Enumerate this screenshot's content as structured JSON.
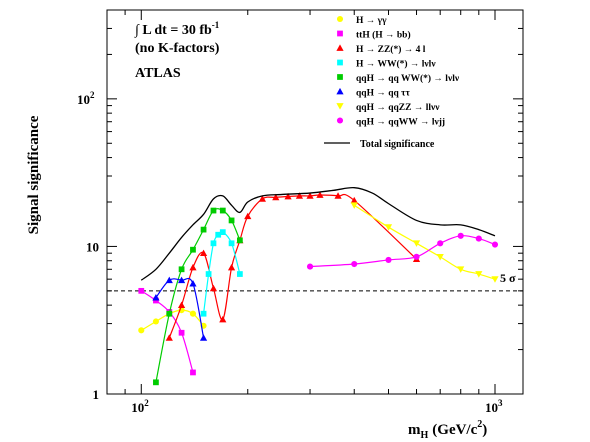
{
  "chart_data": {
    "type": "line",
    "xlabel_main": "m",
    "xlabel_sub": "H",
    "xlabel_unit": "(GeV/c",
    "xlabel_sup": "2",
    "xlabel_close": ")",
    "ylabel": "Signal significance",
    "x_scale": "log",
    "y_scale": "log",
    "xlim": [
      80,
      1200
    ],
    "ylim": [
      1,
      400
    ],
    "x_ticks": [
      {
        "value": 100,
        "base": "10",
        "exp": "2"
      },
      {
        "value": 1000,
        "base": "10",
        "exp": "3"
      }
    ],
    "y_ticks": [
      {
        "value": 1,
        "label": "1"
      },
      {
        "value": 10,
        "label": "10"
      },
      {
        "value": 100,
        "base": "10",
        "exp": "2"
      }
    ],
    "annotations": {
      "lumi_prefix": "∫ L dt = 30 fb",
      "lumi_sup": "-1",
      "kfactor": "(no K-factors)",
      "experiment": "ATLAS",
      "five_sigma": "5 σ"
    },
    "reference_line": {
      "y": 5,
      "style": "dashed"
    },
    "total_label": "Total significance",
    "series": [
      {
        "name": "H → γγ",
        "color": "#ffff00",
        "marker": "circle",
        "x": [
          100,
          110,
          120,
          130,
          140,
          150
        ],
        "y": [
          2.7,
          3.1,
          3.5,
          3.7,
          3.5,
          2.9
        ]
      },
      {
        "name": "ttH (H → bb)",
        "color": "#ff00ff",
        "marker": "square",
        "x": [
          100,
          110,
          120,
          130,
          140
        ],
        "y": [
          5.0,
          4.3,
          3.6,
          2.6,
          1.4
        ]
      },
      {
        "name": "H → ZZ(*) → 4 l",
        "color": "#ff0000",
        "marker": "triangle-up",
        "x": [
          120,
          130,
          140,
          150,
          160,
          170,
          180,
          190,
          200,
          220,
          240,
          260,
          280,
          300,
          320,
          360,
          400,
          600
        ],
        "y": [
          2.4,
          4.0,
          7.2,
          9.0,
          5.2,
          3.2,
          7.2,
          11.0,
          16.0,
          21.0,
          21.5,
          21.8,
          22.0,
          22.0,
          22.3,
          22.0,
          20.5,
          8.2
        ]
      },
      {
        "name": "H → WW(*) → lνlν",
        "color": "#00ffff",
        "marker": "square",
        "x": [
          150,
          155,
          160,
          165,
          170,
          180,
          190
        ],
        "y": [
          3.5,
          6.5,
          10.5,
          12.0,
          12.5,
          10.5,
          6.5
        ]
      },
      {
        "name": "qqH → qq WW(*) → lνlν",
        "color": "#00cc00",
        "marker": "square",
        "x": [
          110,
          120,
          130,
          140,
          150,
          160,
          170,
          180,
          190
        ],
        "y": [
          1.2,
          3.5,
          7.0,
          9.5,
          13.0,
          17.5,
          17.5,
          15.0,
          11.0
        ]
      },
      {
        "name": "qqH → qq ττ",
        "color": "#0000ff",
        "marker": "triangle-up",
        "x": [
          110,
          120,
          130,
          140,
          150
        ],
        "y": [
          4.5,
          5.9,
          5.9,
          5.6,
          2.4
        ]
      },
      {
        "name": "qqH → qqZZ → llνν",
        "color": "#ffff00",
        "marker": "triangle-down",
        "x": [
          400,
          500,
          600,
          700,
          800,
          900,
          1000
        ],
        "y": [
          19.0,
          13.5,
          10.5,
          8.5,
          7.0,
          6.5,
          6.0
        ]
      },
      {
        "name": "qqH → qqWW → lνjj",
        "color": "#ff00ff",
        "marker": "circle",
        "x": [
          300,
          400,
          500,
          600,
          700,
          800,
          900,
          1000
        ],
        "y": [
          7.3,
          7.6,
          8.1,
          8.5,
          10.5,
          11.8,
          11.3,
          10.3
        ]
      },
      {
        "name": "Total significance",
        "color": "#000000",
        "marker": "none",
        "x": [
          100,
          110,
          120,
          130,
          140,
          150,
          160,
          170,
          180,
          190,
          200,
          220,
          250,
          300,
          350,
          400,
          450,
          500,
          600,
          700,
          800,
          900,
          1000
        ],
        "y": [
          5.9,
          7.0,
          9.0,
          11.5,
          14.0,
          16.5,
          21.0,
          22.0,
          19.0,
          17.0,
          20.0,
          22.0,
          22.5,
          23.0,
          24.0,
          25.0,
          23.0,
          19.5,
          15.0,
          14.0,
          14.0,
          13.0,
          11.8
        ]
      }
    ]
  }
}
